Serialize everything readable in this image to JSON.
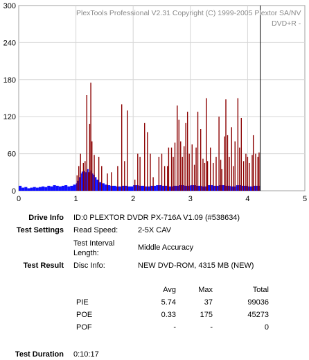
{
  "chart_data": {
    "type": "bar",
    "title": "PlexTools Professional V2.31 Copyright (C) 1999-2005 Plextor SA/NV",
    "subtitle": "DVD+R  -",
    "x_ticks": [
      "0",
      "1",
      "2",
      "3",
      "4",
      "5"
    ],
    "y_ticks": [
      "0",
      "60",
      "120",
      "180",
      "240",
      "300"
    ],
    "xlim": [
      0,
      5
    ],
    "ylim": [
      0,
      300
    ],
    "grid": true,
    "end_marker_x": 4.22,
    "colors": {
      "pie": "#1010ff",
      "poe": "#8b0000",
      "marker": "#000000"
    },
    "series": [
      {
        "key": "pie",
        "x": [
          0.0,
          0.05,
          0.1,
          0.15,
          0.2,
          0.25,
          0.3,
          0.35,
          0.4,
          0.45,
          0.5,
          0.55,
          0.6,
          0.65,
          0.7,
          0.75,
          0.8,
          0.85,
          0.9,
          0.95,
          1.0,
          1.02,
          1.05,
          1.08,
          1.1,
          1.12,
          1.15,
          1.18,
          1.2,
          1.22,
          1.25,
          1.28,
          1.3,
          1.33,
          1.36,
          1.4,
          1.45,
          1.5,
          1.55,
          1.6,
          1.7,
          1.8,
          1.9,
          2.0,
          2.1,
          2.2,
          2.3,
          2.4,
          2.5,
          2.6,
          2.7,
          2.8,
          2.9,
          3.0,
          3.1,
          3.2,
          3.3,
          3.4,
          3.5,
          3.6,
          3.7,
          3.8,
          3.9,
          4.0,
          4.1,
          4.2
        ],
        "values": [
          8,
          5,
          6,
          4,
          5,
          6,
          5,
          6,
          7,
          6,
          8,
          7,
          9,
          8,
          7,
          8,
          9,
          7,
          8,
          10,
          12,
          16,
          22,
          28,
          31,
          32,
          30,
          34,
          35,
          30,
          33,
          28,
          26,
          22,
          18,
          14,
          12,
          10,
          9,
          8,
          7,
          8,
          7,
          9,
          8,
          7,
          8,
          9,
          8,
          7,
          8,
          9,
          8,
          9,
          8,
          7,
          9,
          8,
          9,
          8,
          7,
          9,
          8,
          7,
          8,
          8
        ]
      },
      {
        "key": "poe",
        "x": [
          1.02,
          1.05,
          1.08,
          1.13,
          1.16,
          1.19,
          1.22,
          1.24,
          1.26,
          1.28,
          1.32,
          1.4,
          1.45,
          1.55,
          1.62,
          1.73,
          1.8,
          1.85,
          1.9,
          2.03,
          2.08,
          2.12,
          2.2,
          2.25,
          2.3,
          2.35,
          2.45,
          2.5,
          2.55,
          2.6,
          2.62,
          2.67,
          2.7,
          2.73,
          2.77,
          2.8,
          2.83,
          2.86,
          2.89,
          2.92,
          2.95,
          2.98,
          3.03,
          3.07,
          3.1,
          3.13,
          3.18,
          3.22,
          3.25,
          3.28,
          3.3,
          3.35,
          3.4,
          3.45,
          3.5,
          3.53,
          3.55,
          3.6,
          3.62,
          3.65,
          3.68,
          3.72,
          3.75,
          3.78,
          3.83,
          3.86,
          3.89,
          3.93,
          3.97,
          4.0,
          4.03,
          4.08,
          4.1,
          4.14,
          4.18,
          4.2
        ],
        "values": [
          25,
          40,
          60,
          45,
          48,
          155,
          30,
          108,
          175,
          80,
          58,
          55,
          40,
          28,
          30,
          40,
          140,
          48,
          130,
          18,
          60,
          55,
          110,
          95,
          60,
          22,
          55,
          60,
          40,
          40,
          70,
          70,
          55,
          78,
          138,
          115,
          80,
          55,
          72,
          110,
          128,
          60,
          75,
          42,
          70,
          128,
          100,
          52,
          45,
          150,
          48,
          70,
          45,
          55,
          120,
          50,
          35,
          88,
          148,
          90,
          55,
          103,
          40,
          80,
          150,
          70,
          118,
          48,
          60,
          55,
          45,
          58,
          90,
          60,
          55,
          62
        ]
      }
    ]
  },
  "info": {
    "drive_label": "Drive Info",
    "drive_value": "ID:0 PLEXTOR DVDR PX-716A V1.09 (#538634)",
    "settings_label": "Test Settings",
    "read_speed_label": "Read Speed:",
    "read_speed_value": "2-5X CAV",
    "interval_label_1": "Test Interval",
    "interval_label_2": "Length:",
    "interval_value": "Middle Accuracy",
    "result_label": "Test Result",
    "disc_label": "Disc Info:",
    "disc_value": "NEW DVD-ROM, 4315 MB (NEW)",
    "col_avg": "Avg",
    "col_max": "Max",
    "col_total": "Total",
    "rows": [
      {
        "name": "PIE",
        "avg": "5.74",
        "max": "37",
        "total": "99036"
      },
      {
        "name": "POE",
        "avg": "0.33",
        "max": "175",
        "total": "45273"
      },
      {
        "name": "POF",
        "avg": "-",
        "max": "-",
        "total": "0"
      }
    ],
    "duration_label": "Test Duration",
    "duration_value": "0:10:17"
  }
}
